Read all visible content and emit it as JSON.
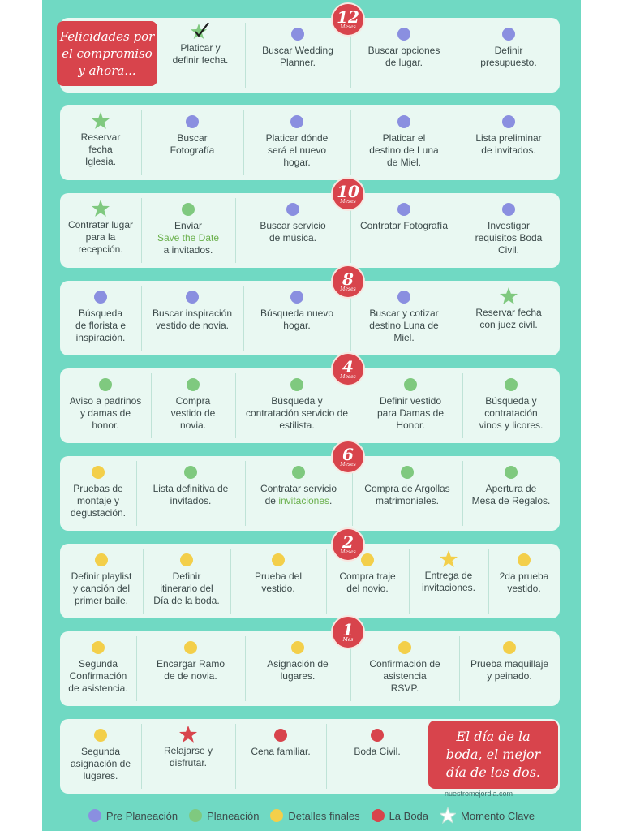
{
  "colors": {
    "pre": "#8a8fe0",
    "plan": "#7fc97f",
    "final": "#f3cf4a",
    "boda": "#d8444c",
    "clave_star_default": "#7fc97f"
  },
  "intro": "Felicidades por\nel compromiso\ny ahora...",
  "outro": "El día de la\nboda, el mejor\ndía de los dos.",
  "credit": "nuestromejordia.com",
  "months": [
    {
      "num": "12",
      "unit": "Meses"
    },
    {
      "num": "10",
      "unit": "Meses"
    },
    {
      "num": "8",
      "unit": "Meses"
    },
    {
      "num": "4",
      "unit": "Meses"
    },
    {
      "num": "6",
      "unit": "Meses"
    },
    {
      "num": "2",
      "unit": "Meses"
    },
    {
      "num": "1",
      "unit": "Mes"
    }
  ],
  "rows": [
    [
      {
        "text": "Platicar y\ndefinir fecha.",
        "marker": "check"
      },
      {
        "text": "Buscar Wedding\nPlanner.",
        "marker": "pre"
      },
      {
        "text": "Buscar opciones\nde lugar.",
        "marker": "pre"
      },
      {
        "text": "Definir\npresupuesto.",
        "marker": "pre"
      }
    ],
    [
      {
        "text": "Reservar\nfecha\nIglesia.",
        "marker": "star-plan"
      },
      {
        "text": "Buscar\nFotografía",
        "marker": "pre"
      },
      {
        "text": "Platicar dónde\nserá el nuevo\nhogar.",
        "marker": "pre"
      },
      {
        "text": "Platicar el\ndestino de Luna\nde Miel.",
        "marker": "pre"
      },
      {
        "text": "Lista preliminar\nde invitados.",
        "marker": "pre"
      }
    ],
    [
      {
        "text": "Contratar lugar\npara la\nrecepción.",
        "marker": "star-plan"
      },
      {
        "text": "Enviar",
        "hl": "Save the Date",
        "after": "a invitados.",
        "marker": "plan"
      },
      {
        "text": "Buscar servicio\nde música.",
        "marker": "pre"
      },
      {
        "text": "Contratar Fotografía",
        "marker": "pre"
      },
      {
        "text": "Investigar\nrequisitos Boda\nCivil.",
        "marker": "pre"
      }
    ],
    [
      {
        "text": "Búsqueda\nde florista  e\ninspiración.",
        "marker": "pre"
      },
      {
        "text": "Buscar inspiración\nvestido de novia.",
        "marker": "pre"
      },
      {
        "text": "Búsqueda nuevo\nhogar.",
        "marker": "pre"
      },
      {
        "text": "Buscar y cotizar\ndestino Luna de\nMiel.",
        "marker": "pre"
      },
      {
        "text": "Reservar fecha\ncon juez civil.",
        "marker": "star-plan"
      }
    ],
    [
      {
        "text": "Aviso a padrinos\ny damas de\nhonor.",
        "marker": "plan"
      },
      {
        "text": "Compra\nvestido de\nnovia.",
        "marker": "plan"
      },
      {
        "text": "Búsqueda y\ncontratación servicio de\nestilista.",
        "marker": "plan"
      },
      {
        "text": "Definir vestido\npara Damas de\nHonor.",
        "marker": "plan"
      },
      {
        "text": "Búsqueda y\ncontratación\nvinos y licores.",
        "marker": "plan"
      }
    ],
    [
      {
        "text": "Pruebas de\nmontaje y\ndegustación.",
        "marker": "final"
      },
      {
        "text": "Lista definitiva de\ninvitados.",
        "marker": "plan"
      },
      {
        "text": "Contratar servicio\nde",
        "hl": "invitaciones",
        "after": ".",
        "inline": true,
        "marker": "plan"
      },
      {
        "text": "Compra de Argollas\nmatrimoniales.",
        "marker": "plan"
      },
      {
        "text": "Apertura de\nMesa de Regalos.",
        "marker": "plan"
      }
    ],
    [
      {
        "text": "Definir playlist\ny canción del\nprimer baile.",
        "marker": "final"
      },
      {
        "text": "Definir\nitinerario del\nDía de la boda.",
        "marker": "final"
      },
      {
        "text": "Prueba del\nvestido.",
        "marker": "final"
      },
      {
        "text": "Compra traje\ndel novio.",
        "marker": "final"
      },
      {
        "text": "Entrega de\ninvitaciones.",
        "marker": "star-final"
      },
      {
        "text": "2da prueba\nvestido.",
        "marker": "final"
      }
    ],
    [
      {
        "text": "Segunda\nConfirmación\nde asistencia.",
        "marker": "final"
      },
      {
        "text": "Encargar Ramo\nde de novia.",
        "marker": "final"
      },
      {
        "text": "Asignación de\nlugares.",
        "marker": "final"
      },
      {
        "text": "Confirmación de\nasistencia\nRSVP.",
        "marker": "final"
      },
      {
        "text": "Prueba maquillaje\ny peinado.",
        "marker": "final"
      }
    ],
    [
      {
        "text": "Segunda\nasignación de\nlugares.",
        "marker": "final"
      },
      {
        "text": "Relajarse y\ndisfrutar.",
        "marker": "star-boda"
      },
      {
        "text": "Cena familiar.",
        "marker": "boda"
      },
      {
        "text": "Boda Civil.",
        "marker": "boda"
      }
    ]
  ],
  "legend": [
    {
      "label": "Pre Planeación",
      "color": "pre"
    },
    {
      "label": "Planeación",
      "color": "plan"
    },
    {
      "label": "Detalles finales",
      "color": "final"
    },
    {
      "label": "La Boda",
      "color": "boda"
    },
    {
      "label": "Momento Clave",
      "color": "star"
    }
  ]
}
